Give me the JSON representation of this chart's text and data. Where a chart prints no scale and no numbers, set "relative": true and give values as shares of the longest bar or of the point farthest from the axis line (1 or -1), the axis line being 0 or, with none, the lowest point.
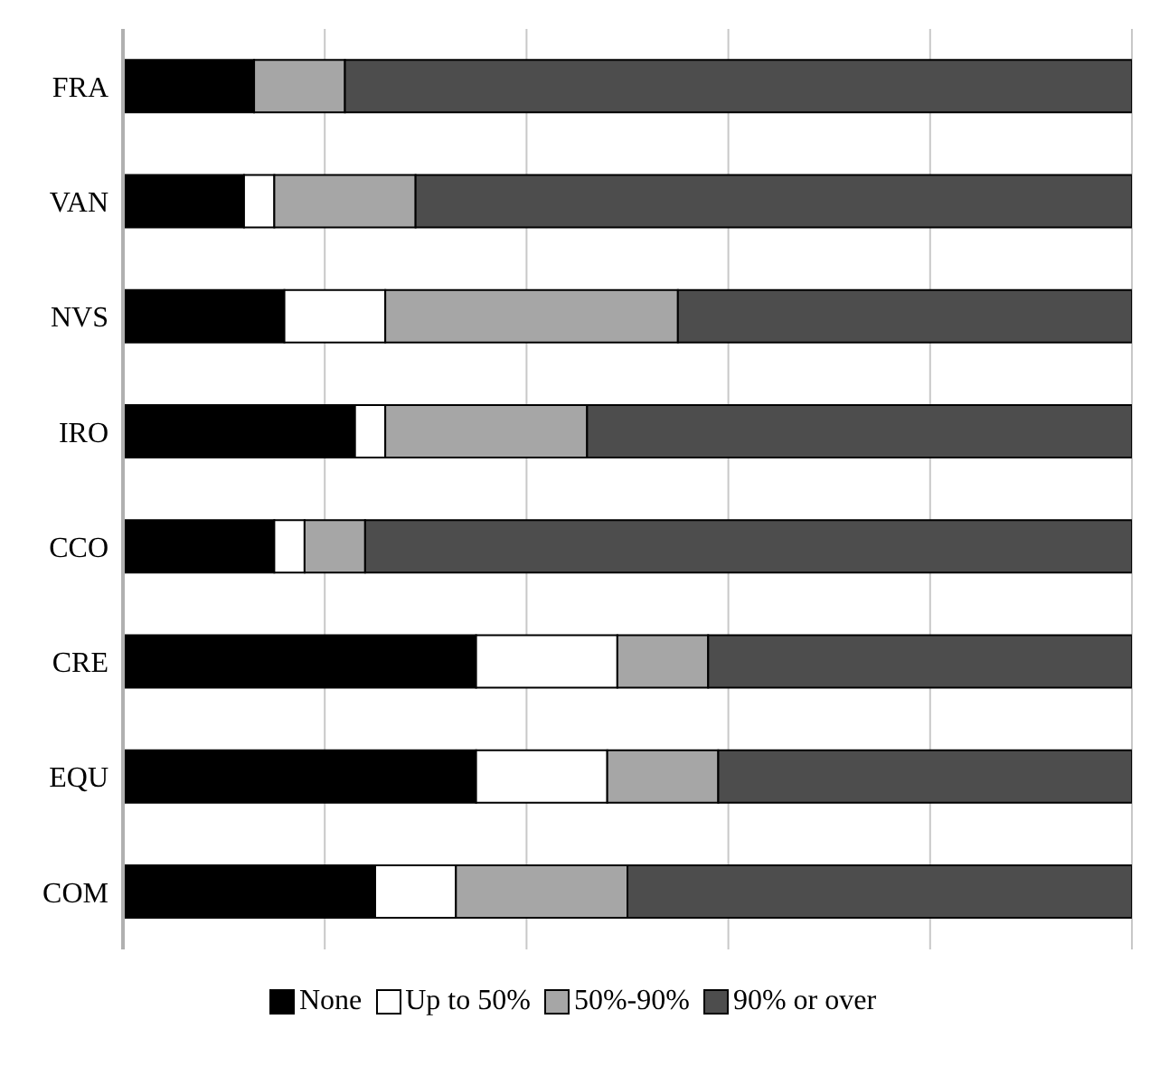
{
  "chart_data": {
    "type": "bar",
    "orientation": "horizontal",
    "stacked": true,
    "relative": true,
    "grid": "x",
    "legend": "bottom",
    "categories": [
      "FRA",
      "VAN",
      "NVS",
      "IRO",
      "CCO",
      "CRE",
      "EQU",
      "COM"
    ],
    "series": [
      {
        "name": "None",
        "color": "#000000",
        "values": [
          0.13,
          0.12,
          0.16,
          0.23,
          0.15,
          0.35,
          0.35,
          0.25
        ]
      },
      {
        "name": "Up to 50%",
        "color": "#ffffff",
        "values": [
          0,
          0.03,
          0.1,
          0.03,
          0.03,
          0.14,
          0.13,
          0.08
        ]
      },
      {
        "name": "50%-90%",
        "color": "#a6a6a6",
        "values": [
          0.09,
          0.14,
          0.29,
          0.2,
          0.06,
          0.09,
          0.11,
          0.17
        ]
      },
      {
        "name": "90% or over",
        "color": "#4d4d4d",
        "values": [
          0.78,
          0.71,
          0.45,
          0.54,
          0.76,
          0.42,
          0.41,
          0.5
        ]
      }
    ]
  }
}
